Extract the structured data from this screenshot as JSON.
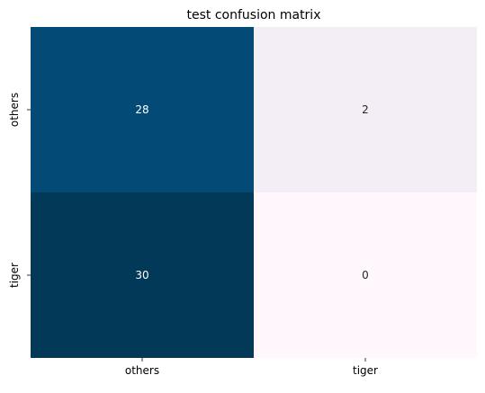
{
  "chart_data": {
    "type": "heatmap",
    "title": "test confusion matrix",
    "xlabel": "",
    "ylabel": "",
    "x_categories": [
      "others",
      "tiger"
    ],
    "y_categories": [
      "others",
      "tiger"
    ],
    "values": [
      [
        28,
        2
      ],
      [
        30,
        0
      ]
    ],
    "colorbar": false,
    "grid": false,
    "colormap": "PuBu",
    "cell_colors": [
      [
        "#034b76",
        "#f3edf5"
      ],
      [
        "#023858",
        "#fff7fb"
      ]
    ],
    "annotation_colors": [
      [
        "#ffffff",
        "#262626"
      ],
      [
        "#ffffff",
        "#262626"
      ]
    ]
  }
}
